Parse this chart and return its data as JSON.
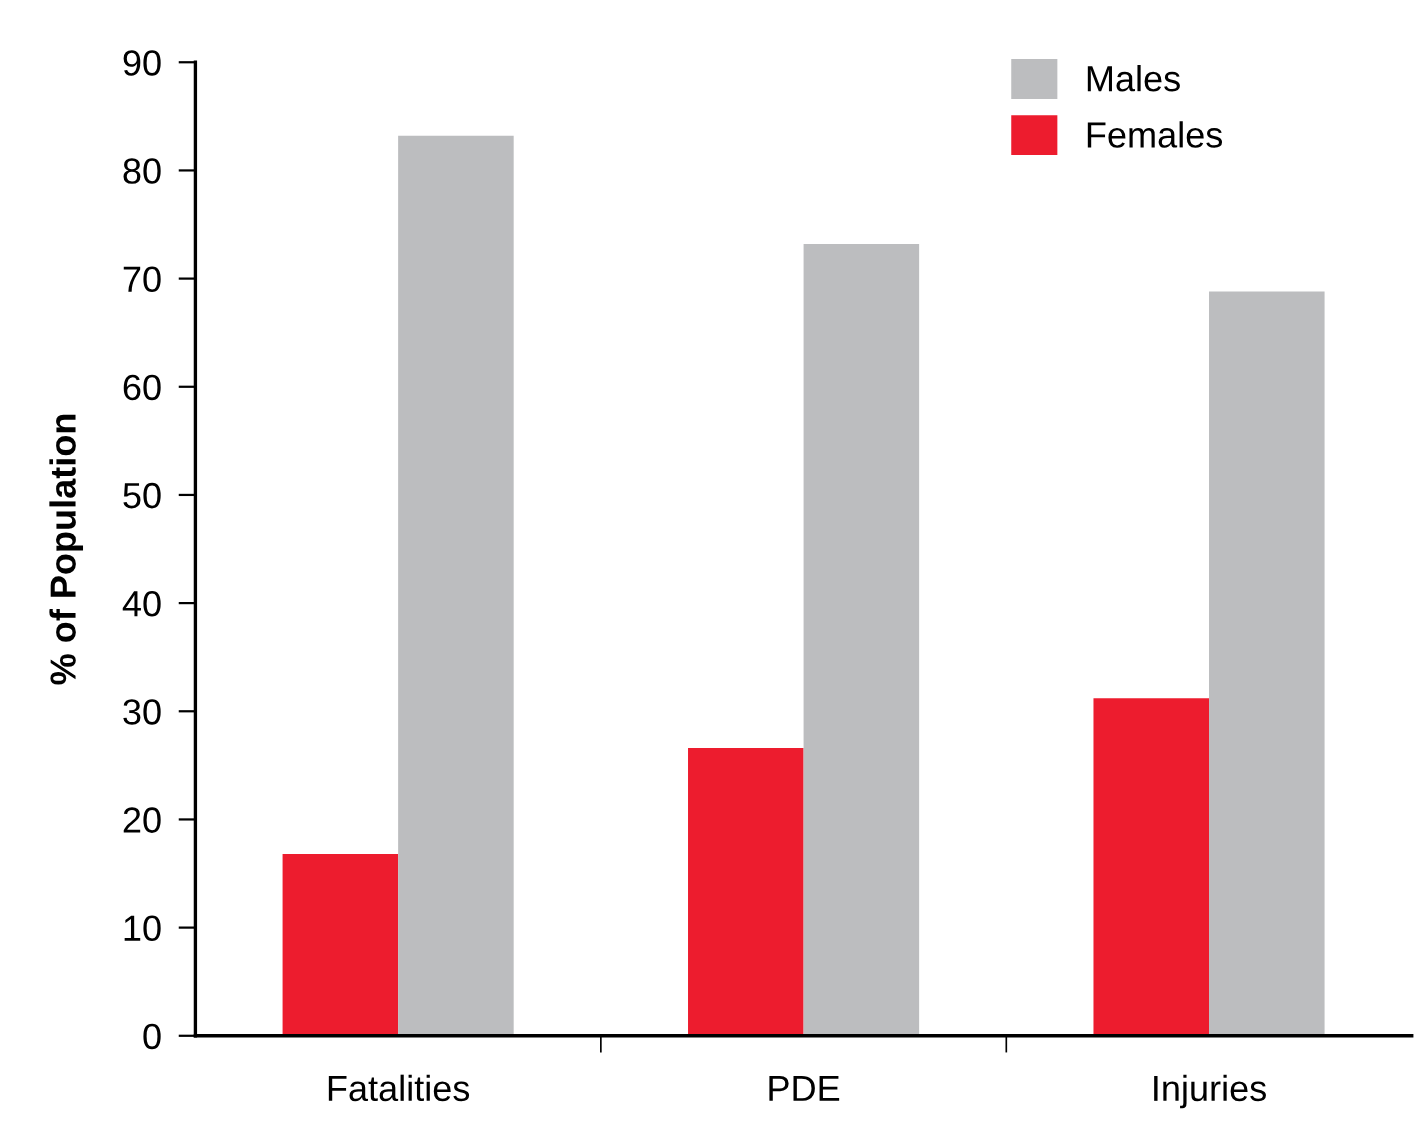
{
  "chart_data": {
    "type": "bar",
    "ylabel": "% of Population",
    "categories": [
      "Fatalities",
      "PDE",
      "Injuries"
    ],
    "series": [
      {
        "name": "Females",
        "color": "#ed1c2e",
        "values": [
          16.8,
          26.6,
          31.2
        ]
      },
      {
        "name": "Males",
        "color": "#bcbdbf",
        "values": [
          83.2,
          73.2,
          68.8
        ]
      }
    ],
    "ylim": [
      0,
      90
    ],
    "yticks": [
      0,
      10,
      20,
      30,
      40,
      50,
      60,
      70,
      80,
      90
    ],
    "grid": false,
    "legend": "top right"
  }
}
